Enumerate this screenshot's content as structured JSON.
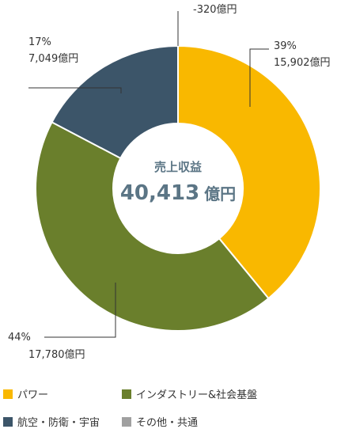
{
  "colors": {
    "power": "#f9b800",
    "industry": "#6a7f2c",
    "aero": "#3c5569",
    "other": "#a0a0a0",
    "text": "#333333",
    "center_text": "#5b7585"
  },
  "chart_data": {
    "type": "pie",
    "variant": "donut",
    "center_title": "売上収益",
    "center_total_value": "40,413",
    "center_total_unit": "億円",
    "slices": [
      {
        "name": "パワー",
        "value": 15902,
        "percent_label": "39%",
        "value_label": "15,902億円",
        "color": "#f9b800"
      },
      {
        "name": "インダストリー&社会基盤",
        "value": 17780,
        "percent_label": "44%",
        "value_label": "17,780億円",
        "color": "#6a7f2c"
      },
      {
        "name": "航空・防衛・宇宙",
        "value": 7049,
        "percent_label": "17%",
        "value_label": "7,049億円",
        "color": "#3c5569"
      },
      {
        "name": "その他・共通",
        "value": -320,
        "percent_label": "",
        "value_label": "-320億円",
        "color": "#a0a0a0"
      }
    ],
    "legend_placement": "bottom"
  }
}
